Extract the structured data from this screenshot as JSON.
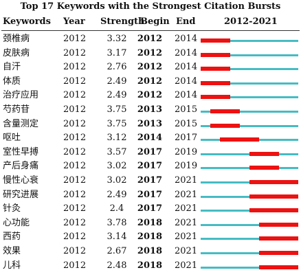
{
  "chart_data": {
    "type": "table",
    "title": "Top 17 Keywords with the Strongest Citation Bursts",
    "columns": [
      "Keywords",
      "Year",
      "Strength",
      "Begin",
      "End",
      "2012-2021"
    ],
    "range": [
      2012,
      2021
    ],
    "colors": {
      "track": "#45bcc3",
      "burst": "#ee1111"
    },
    "rows": [
      {
        "keyword": "颈椎病",
        "year": "2012",
        "strength": "3.32",
        "begin": "2012",
        "end": "2014"
      },
      {
        "keyword": "皮肤病",
        "year": "2012",
        "strength": "3.17",
        "begin": "2012",
        "end": "2014"
      },
      {
        "keyword": "自汗",
        "year": "2012",
        "strength": "2.76",
        "begin": "2012",
        "end": "2014"
      },
      {
        "keyword": "体质",
        "year": "2012",
        "strength": "2.49",
        "begin": "2012",
        "end": "2014"
      },
      {
        "keyword": "治疗应用",
        "year": "2012",
        "strength": "2.49",
        "begin": "2012",
        "end": "2014"
      },
      {
        "keyword": "芍药苷",
        "year": "2012",
        "strength": "3.75",
        "begin": "2013",
        "end": "2015"
      },
      {
        "keyword": "含量测定",
        "year": "2012",
        "strength": "3.75",
        "begin": "2013",
        "end": "2015"
      },
      {
        "keyword": "呕吐",
        "year": "2012",
        "strength": "3.12",
        "begin": "2014",
        "end": "2017"
      },
      {
        "keyword": "室性早搏",
        "year": "2012",
        "strength": "3.57",
        "begin": "2017",
        "end": "2019"
      },
      {
        "keyword": "产后身痛",
        "year": "2012",
        "strength": "3.02",
        "begin": "2017",
        "end": "2019"
      },
      {
        "keyword": "慢性心衰",
        "year": "2012",
        "strength": "3.02",
        "begin": "2017",
        "end": "2021"
      },
      {
        "keyword": "研究进展",
        "year": "2012",
        "strength": "2.49",
        "begin": "2017",
        "end": "2021"
      },
      {
        "keyword": "针灸",
        "year": "2012",
        "strength": "2.4",
        "begin": "2017",
        "end": "2021"
      },
      {
        "keyword": "心功能",
        "year": "2012",
        "strength": "3.78",
        "begin": "2018",
        "end": "2021"
      },
      {
        "keyword": "西药",
        "year": "2012",
        "strength": "3.14",
        "begin": "2018",
        "end": "2021"
      },
      {
        "keyword": "效果",
        "year": "2012",
        "strength": "2.67",
        "begin": "2018",
        "end": "2021"
      },
      {
        "keyword": "儿科",
        "year": "2012",
        "strength": "2.48",
        "begin": "2018",
        "end": "2021"
      }
    ]
  }
}
